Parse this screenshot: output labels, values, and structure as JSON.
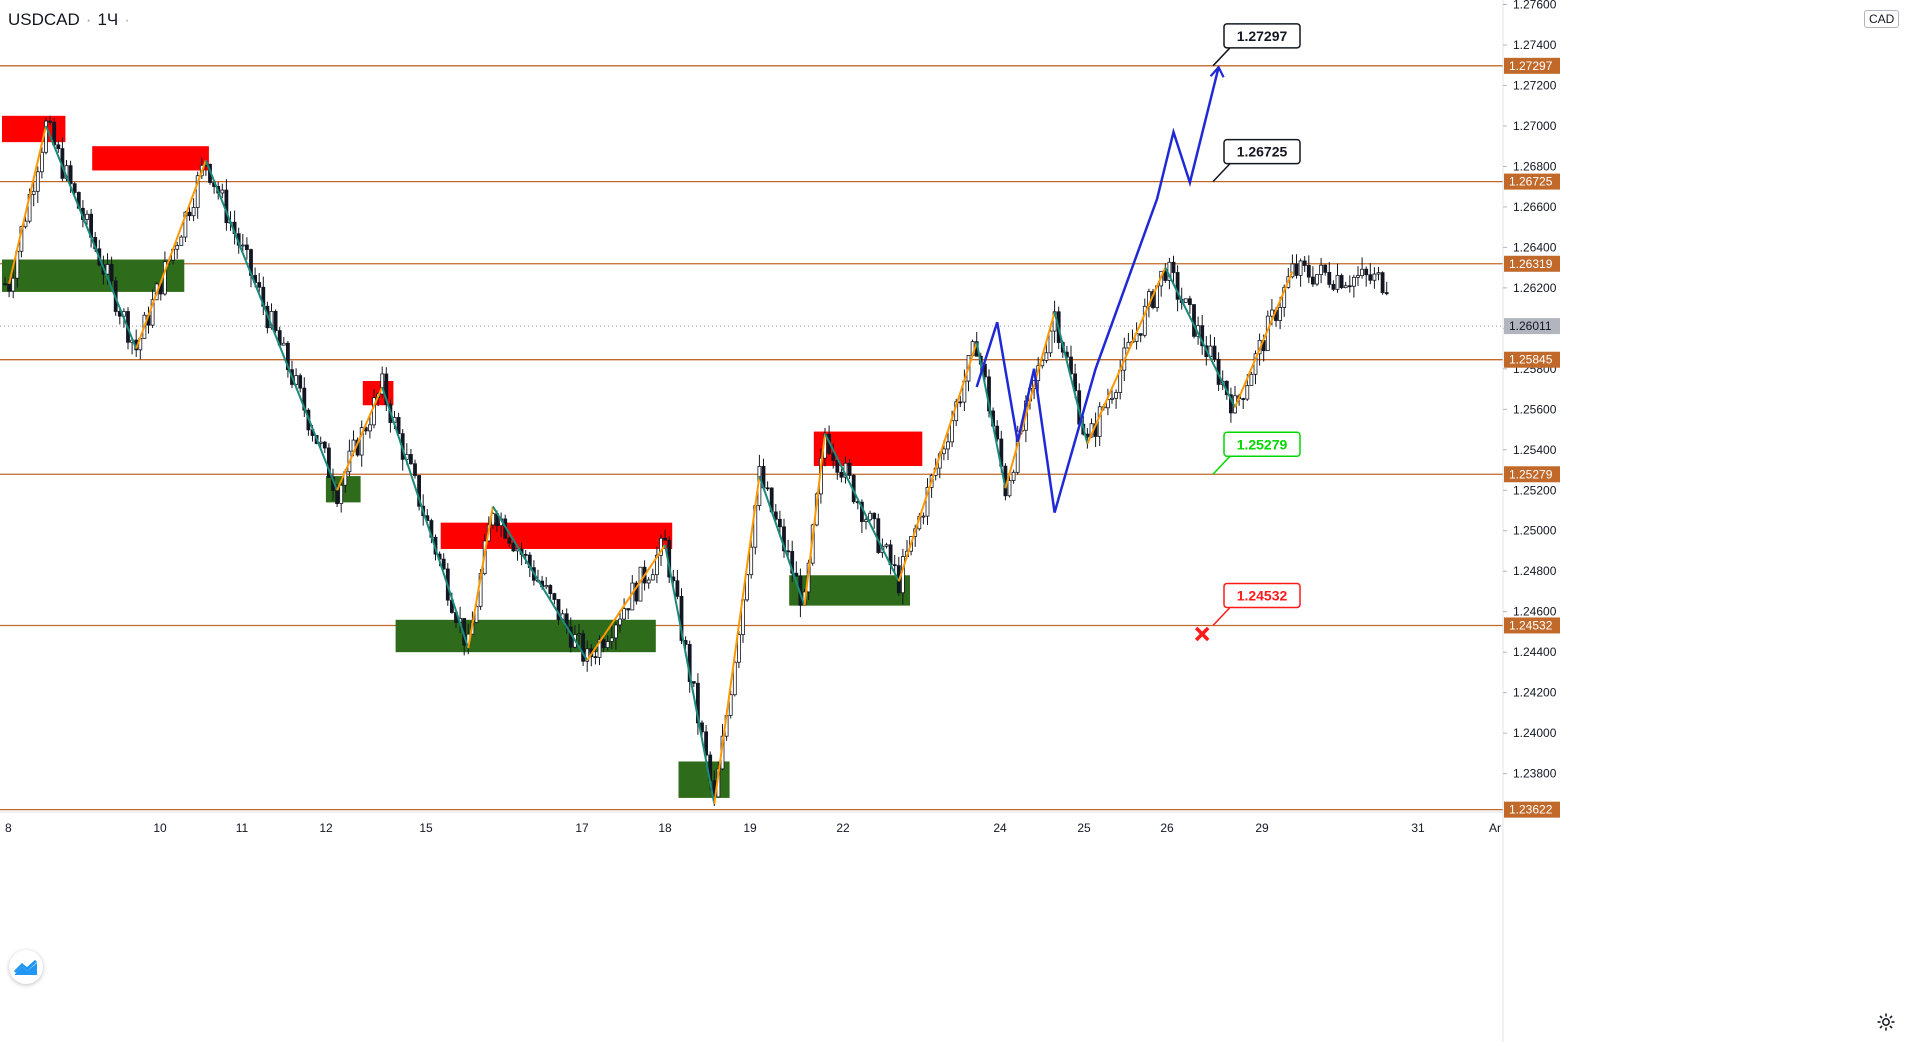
{
  "header": {
    "symbol": "USDCAD",
    "interval": "1Ч"
  },
  "price_axis": {
    "currency": "CAD"
  },
  "colors": {
    "level_line": "#c0692a",
    "zigzag_up": "#ff9800",
    "zigzag_down": "#1b8a7a",
    "forecast": "#1f2ad6",
    "supply_zone": "#ff0000",
    "demand_zone": "#2e6b1a",
    "candle": "#131722",
    "callout_green": "#00d800",
    "callout_red": "#ff1a1a"
  },
  "chart_data": {
    "type": "candlestick",
    "symbol": "USDCAD",
    "timeframe": "1Ч",
    "ylim": [
      1.2355,
      1.276
    ],
    "y_ticks": [
      1.238,
      1.24,
      1.242,
      1.244,
      1.246,
      1.248,
      1.25,
      1.252,
      1.254,
      1.256,
      1.258,
      1.26,
      1.262,
      1.264,
      1.266,
      1.268,
      1.27,
      1.272,
      1.274,
      1.276
    ],
    "y_tick_labels": [
      "1.23800",
      "1.24000",
      "1.24200",
      "1.24400",
      "1.24600",
      "1.24800",
      "1.25000",
      "1.25200",
      "1.25400",
      "1.25600",
      "1.25800",
      "1.26000",
      "1.26200",
      "1.26400",
      "1.26600",
      "1.26800",
      "1.27000",
      "1.27200",
      "1.27400",
      "1.27600"
    ],
    "x_tick_labels": [
      "8",
      "10",
      "11",
      "12",
      "15",
      "17",
      "18",
      "19",
      "22",
      "24",
      "25",
      "26",
      "29",
      "31",
      "Ar"
    ],
    "current_price": {
      "value": 1.26011,
      "label": "1.26011"
    },
    "levels": [
      {
        "value": 1.27297,
        "label": "1.27297"
      },
      {
        "value": 1.26725,
        "label": "1.26725"
      },
      {
        "value": 1.26319,
        "label": "1.26319"
      },
      {
        "value": 1.25845,
        "label": "1.25845"
      },
      {
        "value": 1.25279,
        "label": "1.25279"
      },
      {
        "value": 1.24532,
        "label": "1.24532"
      },
      {
        "value": 1.23622,
        "label": "1.23622"
      }
    ],
    "callouts": [
      {
        "label": "1.27297",
        "style": "dark",
        "value": 1.27297
      },
      {
        "label": "1.26725",
        "style": "dark",
        "value": 1.26725
      },
      {
        "label": "1.25279",
        "style": "green",
        "value": 1.25279
      },
      {
        "label": "1.24532",
        "style": "red",
        "value": 1.24532
      }
    ],
    "supply_zones": [
      {
        "from_index": 0,
        "to_index": 14,
        "high": 1.2705,
        "low": 1.2692
      },
      {
        "from_index": 22,
        "to_index": 49,
        "high": 1.269,
        "low": 1.2678
      },
      {
        "from_index": 88,
        "to_index": 94,
        "high": 1.2574,
        "low": 1.2562
      },
      {
        "from_index": 107,
        "to_index": 162,
        "high": 1.2504,
        "low": 1.2491
      },
      {
        "from_index": 198,
        "to_index": 223,
        "high": 1.2549,
        "low": 1.2532
      }
    ],
    "demand_zones": [
      {
        "from_index": 0,
        "to_index": 43,
        "high": 1.2634,
        "low": 1.2618
      },
      {
        "from_index": 79,
        "to_index": 86,
        "high": 1.2527,
        "low": 1.2514
      },
      {
        "from_index": 96,
        "to_index": 158,
        "high": 1.2456,
        "low": 1.244
      },
      {
        "from_index": 165,
        "to_index": 176,
        "high": 1.2386,
        "low": 1.2368
      },
      {
        "from_index": 192,
        "to_index": 220,
        "high": 1.2478,
        "low": 1.2463
      }
    ],
    "zigzag": [
      {
        "index": 1,
        "price": 1.2622
      },
      {
        "index": 10,
        "price": 1.27
      },
      {
        "index": 32,
        "price": 1.259
      },
      {
        "index": 49,
        "price": 1.2683
      },
      {
        "index": 81,
        "price": 1.252
      },
      {
        "index": 92,
        "price": 1.2571
      },
      {
        "index": 113,
        "price": 1.2442
      },
      {
        "index": 119,
        "price": 1.2512
      },
      {
        "index": 142,
        "price": 1.2436
      },
      {
        "index": 161,
        "price": 1.2493
      },
      {
        "index": 173,
        "price": 1.2365
      },
      {
        "index": 184,
        "price": 1.2527
      },
      {
        "index": 195,
        "price": 1.2463
      },
      {
        "index": 200,
        "price": 1.2548
      },
      {
        "index": 218,
        "price": 1.2475
      },
      {
        "index": 237,
        "price": 1.2593
      },
      {
        "index": 244,
        "price": 1.2521
      },
      {
        "index": 256,
        "price": 1.2608
      },
      {
        "index": 264,
        "price": 1.2543
      },
      {
        "index": 283,
        "price": 1.263
      },
      {
        "index": 300,
        "price": 1.2561
      },
      {
        "index": 314,
        "price": 1.2628
      }
    ],
    "forecast_path": [
      {
        "index": 237,
        "price": 1.2571
      },
      {
        "index": 242,
        "price": 1.2603
      },
      {
        "index": 247,
        "price": 1.2544
      },
      {
        "index": 251,
        "price": 1.258
      },
      {
        "index": 256,
        "price": 1.2509
      },
      {
        "index": 266,
        "price": 1.258
      },
      {
        "index": 281,
        "price": 1.2664
      },
      {
        "index": 285,
        "price": 1.2697
      },
      {
        "index": 289,
        "price": 1.2672
      },
      {
        "index": 296,
        "price": 1.2729
      }
    ],
    "stop_marker": {
      "index": 292,
      "price": 1.2449
    },
    "candles": {
      "count": 338
    }
  }
}
